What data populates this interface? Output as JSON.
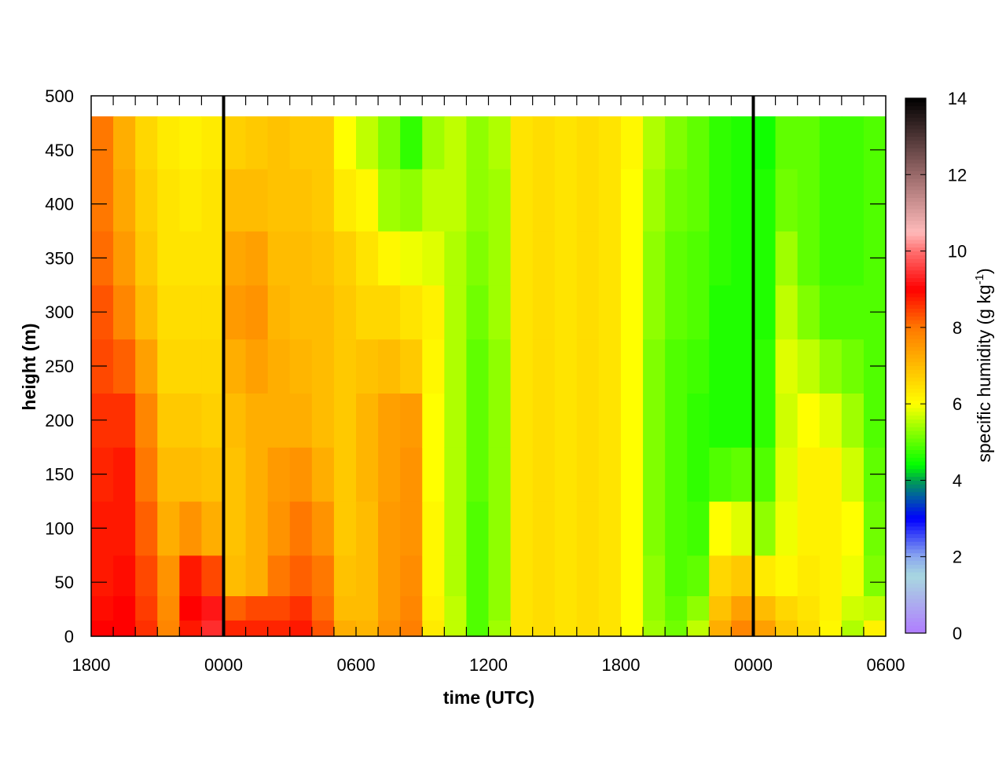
{
  "chart_data": {
    "type": "heatmap",
    "title": "",
    "xlabel": "time (UTC)",
    "ylabel": "height (m)",
    "colorbar_label": "specific humidity (g kg",
    "colorbar_label_sup": "-1",
    "colorbar_label_end": ")",
    "x_tick_labels": [
      "1800",
      "0000",
      "0600",
      "1200",
      "1800",
      "0000",
      "0600"
    ],
    "y_ticks": [
      0,
      50,
      100,
      150,
      200,
      250,
      300,
      350,
      400,
      450,
      500
    ],
    "ylim": [
      0,
      500
    ],
    "colorbar_ticks": [
      0,
      2,
      4,
      6,
      8,
      10,
      12,
      14
    ],
    "clim": [
      0,
      14
    ],
    "colormap": [
      {
        "v": 0,
        "c": "#b07cff"
      },
      {
        "v": 1.5,
        "c": "#a8d8e0"
      },
      {
        "v": 2,
        "c": "#8ca8ee"
      },
      {
        "v": 3,
        "c": "#0000ff"
      },
      {
        "v": 3.6,
        "c": "#0060a0"
      },
      {
        "v": 4,
        "c": "#00a050"
      },
      {
        "v": 4.4,
        "c": "#00ff00"
      },
      {
        "v": 6,
        "c": "#ffff00"
      },
      {
        "v": 8,
        "c": "#ff7800"
      },
      {
        "v": 9,
        "c": "#ff0000"
      },
      {
        "v": 10,
        "c": "#ff7070"
      },
      {
        "v": 10.5,
        "c": "#ffbaba"
      },
      {
        "v": 12,
        "c": "#9a6a6a"
      },
      {
        "v": 14,
        "c": "#000000"
      }
    ],
    "vertical_lines": [
      {
        "time": "0000",
        "occurrence": 1
      },
      {
        "time": "0000",
        "occurrence": 2
      }
    ],
    "times": [
      "1800",
      "1900",
      "2000",
      "2100",
      "2200",
      "2300",
      "0000",
      "0100",
      "0200",
      "0300",
      "0400",
      "0500",
      "0600",
      "0700",
      "0800",
      "0900",
      "1000",
      "1100",
      "1200",
      "1300",
      "1400",
      "1500",
      "1600",
      "1700",
      "1800",
      "1900",
      "2000",
      "2100",
      "2200",
      "2300",
      "0000",
      "0100",
      "0200",
      "0300",
      "0400",
      "0500"
    ],
    "heights": [
      5,
      25,
      50,
      100,
      150,
      200,
      250,
      300,
      350,
      400,
      465
    ],
    "values": [
      [
        9.0,
        8.9,
        8.8,
        8.8,
        8.7,
        8.6,
        8.4,
        8.3,
        8.1,
        8.0,
        8.0
      ],
      [
        9.0,
        9.0,
        8.9,
        8.8,
        8.8,
        8.6,
        8.2,
        7.8,
        7.5,
        7.3,
        7.2
      ],
      [
        8.6,
        8.5,
        8.4,
        8.2,
        8.0,
        7.8,
        7.4,
        7.0,
        6.8,
        6.7,
        6.6
      ],
      [
        7.8,
        7.7,
        7.6,
        7.2,
        7.0,
        6.8,
        6.6,
        6.5,
        6.4,
        6.4,
        6.3
      ],
      [
        8.8,
        9.0,
        8.8,
        7.6,
        7.0,
        6.8,
        6.6,
        6.5,
        6.4,
        6.3,
        6.2
      ],
      [
        9.4,
        9.2,
        8.4,
        7.2,
        6.9,
        6.7,
        6.6,
        6.5,
        6.4,
        6.4,
        6.3
      ],
      [
        8.7,
        8.2,
        7.0,
        6.9,
        6.9,
        7.0,
        7.2,
        7.5,
        7.3,
        7.0,
        6.7
      ],
      [
        8.7,
        8.4,
        7.2,
        7.2,
        7.2,
        7.2,
        7.4,
        7.6,
        7.4,
        7.0,
        6.8
      ],
      [
        8.7,
        8.4,
        8.0,
        7.6,
        7.5,
        7.2,
        7.2,
        7.1,
        7.0,
        6.9,
        6.9
      ],
      [
        8.8,
        8.6,
        8.2,
        8.0,
        7.6,
        7.2,
        7.1,
        7.0,
        7.0,
        6.9,
        6.8
      ],
      [
        8.3,
        8.1,
        8.0,
        7.6,
        7.2,
        7.0,
        7.0,
        7.0,
        6.9,
        6.8,
        6.8
      ],
      [
        7.2,
        7.0,
        6.9,
        6.8,
        6.8,
        6.8,
        6.8,
        6.8,
        6.7,
        6.3,
        6.0
      ],
      [
        7.1,
        7.0,
        7.0,
        7.0,
        7.1,
        7.1,
        6.9,
        6.6,
        6.4,
        6.1,
        5.6
      ],
      [
        7.6,
        7.5,
        7.5,
        7.5,
        7.4,
        7.4,
        7.0,
        6.6,
        6.1,
        5.4,
        5.2
      ],
      [
        7.9,
        7.8,
        7.7,
        7.6,
        7.6,
        7.5,
        6.8,
        6.4,
        5.9,
        5.3,
        4.7
      ],
      [
        6.3,
        6.2,
        6.1,
        6.1,
        6.0,
        6.0,
        6.1,
        6.2,
        5.8,
        5.6,
        5.4
      ],
      [
        5.6,
        5.6,
        5.5,
        5.5,
        5.5,
        5.5,
        5.5,
        5.5,
        5.5,
        5.6,
        5.6
      ],
      [
        4.9,
        4.9,
        4.9,
        4.9,
        5.0,
        5.0,
        5.0,
        5.1,
        5.2,
        5.3,
        5.3
      ],
      [
        5.4,
        5.3,
        5.3,
        5.3,
        5.3,
        5.3,
        5.3,
        5.4,
        5.4,
        5.4,
        5.5
      ],
      [
        6.4,
        6.4,
        6.4,
        6.4,
        6.4,
        6.4,
        6.4,
        6.4,
        6.4,
        6.4,
        6.4
      ],
      [
        6.5,
        6.5,
        6.5,
        6.5,
        6.5,
        6.5,
        6.5,
        6.5,
        6.5,
        6.5,
        6.5
      ],
      [
        6.4,
        6.4,
        6.4,
        6.4,
        6.4,
        6.4,
        6.4,
        6.4,
        6.4,
        6.4,
        6.4
      ],
      [
        6.5,
        6.5,
        6.5,
        6.5,
        6.5,
        6.5,
        6.5,
        6.5,
        6.5,
        6.5,
        6.5
      ],
      [
        6.4,
        6.4,
        6.4,
        6.4,
        6.4,
        6.4,
        6.4,
        6.4,
        6.4,
        6.4,
        6.4
      ],
      [
        6.0,
        6.0,
        6.0,
        6.0,
        6.0,
        6.0,
        6.0,
        6.0,
        6.0,
        6.0,
        6.1
      ],
      [
        5.4,
        5.3,
        5.3,
        5.2,
        5.2,
        5.2,
        5.2,
        5.3,
        5.3,
        5.4,
        5.5
      ],
      [
        5.1,
        5.0,
        4.9,
        4.9,
        4.9,
        4.9,
        4.9,
        5.0,
        5.0,
        5.1,
        5.2
      ],
      [
        5.6,
        5.3,
        5.0,
        4.8,
        4.7,
        4.7,
        4.8,
        4.9,
        4.9,
        5.0,
        5.0
      ],
      [
        7.2,
        6.9,
        6.6,
        6.0,
        4.9,
        4.6,
        4.6,
        4.6,
        4.7,
        4.7,
        4.7
      ],
      [
        7.8,
        7.4,
        6.8,
        5.8,
        5.0,
        4.6,
        4.6,
        4.6,
        4.6,
        4.6,
        4.6
      ],
      [
        7.4,
        7.0,
        6.3,
        5.3,
        4.9,
        4.7,
        4.7,
        4.6,
        4.6,
        4.6,
        4.5
      ],
      [
        6.8,
        6.6,
        6.1,
        5.9,
        5.8,
        5.7,
        5.8,
        5.6,
        5.4,
        5.1,
        5.0
      ],
      [
        6.5,
        6.4,
        6.3,
        6.2,
        6.2,
        6.0,
        5.6,
        5.2,
        5.0,
        5.0,
        5.0
      ],
      [
        6.1,
        6.2,
        6.2,
        6.2,
        6.2,
        5.8,
        5.3,
        4.9,
        4.8,
        4.8,
        4.8
      ],
      [
        5.5,
        5.7,
        5.9,
        6.0,
        5.7,
        5.4,
        5.1,
        4.9,
        4.8,
        4.8,
        4.8
      ],
      [
        6.2,
        5.6,
        5.2,
        5.1,
        5.0,
        4.9,
        4.9,
        4.9,
        4.9,
        4.9,
        4.9
      ]
    ]
  }
}
